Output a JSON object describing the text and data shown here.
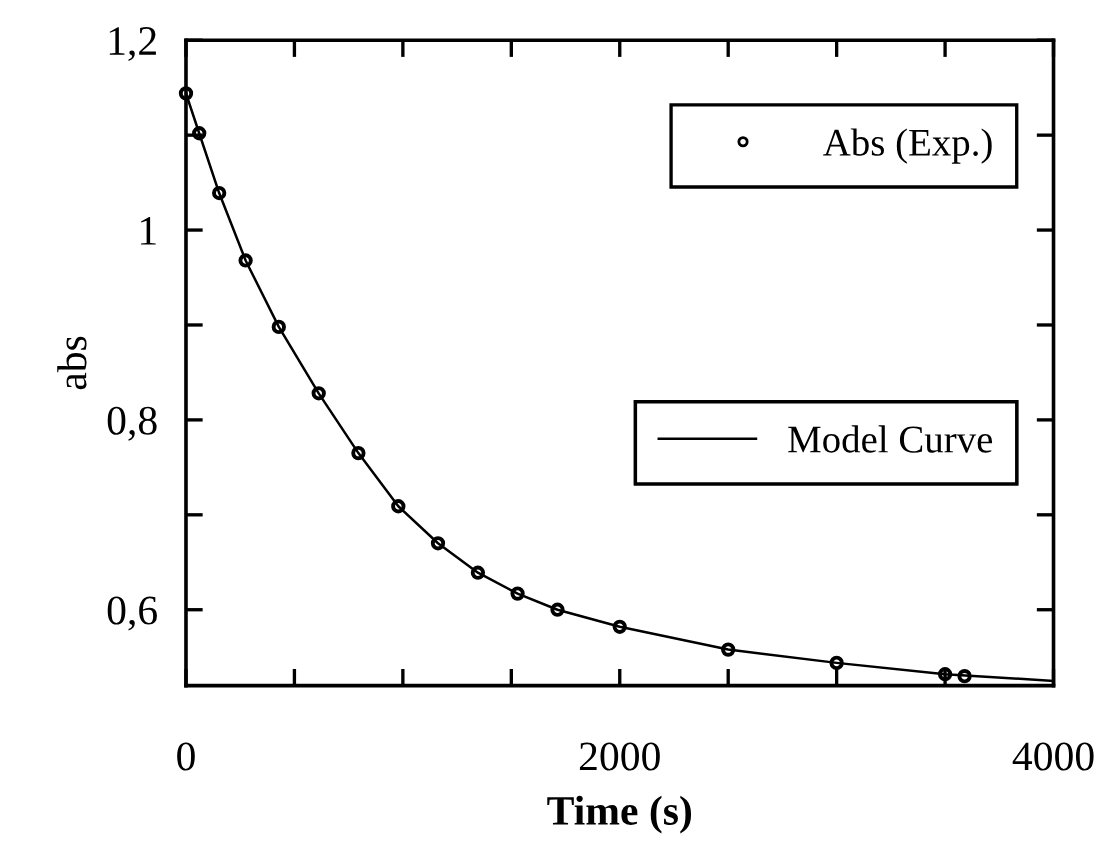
{
  "chart_data": {
    "type": "scatter",
    "xlabel": "Time (s)",
    "ylabel": "abs",
    "xlim": [
      0,
      4000
    ],
    "ylim": [
      0.52,
      1.2
    ],
    "xticks": [
      0,
      {
        "value": 500,
        "label": null
      },
      {
        "value": 1000,
        "label": null
      },
      {
        "value": 1500,
        "label": null
      },
      2000,
      {
        "value": 2500,
        "label": null
      },
      {
        "value": 3000,
        "label": null
      },
      {
        "value": 3500,
        "label": null
      },
      4000
    ],
    "yticks": [
      {
        "value": 0.6,
        "label": "0,6"
      },
      {
        "value": 0.7,
        "label": null
      },
      {
        "value": 0.8,
        "label": "0,8"
      },
      {
        "value": 0.9,
        "label": null
      },
      {
        "value": 1,
        "label": "1"
      },
      {
        "value": 1.1,
        "label": null
      },
      {
        "value": 1.2,
        "label": "1,2"
      }
    ],
    "grid": false,
    "legend": "right",
    "series": [
      {
        "name": "Abs (Exp.)",
        "marker": "circle",
        "color": "#000000",
        "x": [
          0,
          61,
          153,
          275,
          428,
          612,
          795,
          979,
          1162,
          1346,
          1529,
          1713,
          2000,
          2500,
          3000,
          3500,
          3590
        ],
        "values": [
          1.144,
          1.102,
          1.039,
          0.968,
          0.898,
          0.828,
          0.765,
          0.709,
          0.67,
          0.639,
          0.617,
          0.6,
          0.582,
          0.558,
          0.544,
          0.532,
          0.53
        ]
      },
      {
        "name": "Model Curve",
        "type": "line",
        "line_style": "solid",
        "color": "#000000",
        "x": [
          0,
          61,
          153,
          275,
          428,
          612,
          795,
          979,
          1162,
          1346,
          1529,
          1713,
          2000,
          2500,
          3000,
          3500,
          4000
        ],
        "values": [
          1.144,
          1.102,
          1.039,
          0.968,
          0.898,
          0.828,
          0.765,
          0.709,
          0.67,
          0.639,
          0.617,
          0.6,
          0.582,
          0.558,
          0.544,
          0.532,
          0.525
        ]
      }
    ]
  }
}
